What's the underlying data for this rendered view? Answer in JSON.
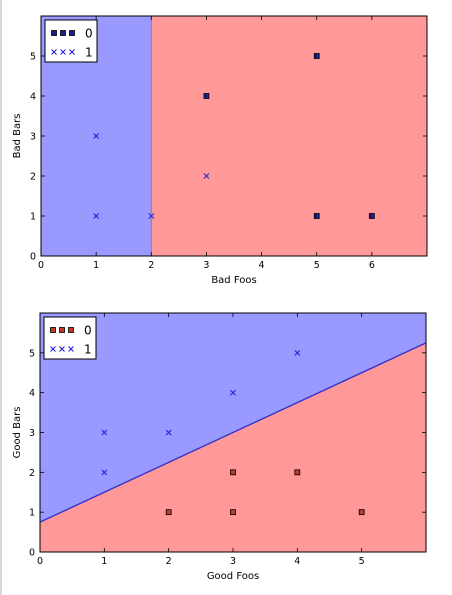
{
  "chart_data": [
    {
      "type": "scatter",
      "xlabel": "Bad Foos",
      "ylabel": "Bad Bars",
      "xlim": [
        0,
        7
      ],
      "ylim": [
        0,
        6
      ],
      "xticks": [
        "0",
        "1",
        "2",
        "3",
        "4",
        "5",
        "6"
      ],
      "yticks": [
        "0",
        "1",
        "2",
        "3",
        "4",
        "5"
      ],
      "legend_position": "top-left",
      "decision_boundary": {
        "kind": "vertical",
        "x": 2
      },
      "regions": {
        "left": "#9999ff",
        "right": "#ff9999"
      },
      "series": [
        {
          "name": "0",
          "marker": "square",
          "color": "#1c1c8c",
          "x": [
            3,
            5,
            5,
            6
          ],
          "y": [
            4,
            5,
            1,
            1
          ]
        },
        {
          "name": "1",
          "marker": "x",
          "color": "#2222dd",
          "x": [
            1,
            1,
            2,
            3
          ],
          "y": [
            3,
            1,
            1,
            2
          ]
        }
      ]
    },
    {
      "type": "scatter",
      "xlabel": "Good Foos",
      "ylabel": "Good Bars",
      "xlim": [
        0,
        6
      ],
      "ylim": [
        0,
        6
      ],
      "xticks": [
        "0",
        "1",
        "2",
        "3",
        "4",
        "5"
      ],
      "yticks": [
        "0",
        "1",
        "2",
        "3",
        "4",
        "5"
      ],
      "legend_position": "top-left",
      "decision_boundary": {
        "kind": "line",
        "intercept": 0.75,
        "slope": 0.75
      },
      "regions": {
        "above": "#9999ff",
        "below": "#ff9999"
      },
      "series": [
        {
          "name": "0",
          "marker": "square",
          "color": "#c0392b",
          "x": [
            2,
            3,
            3,
            4,
            5
          ],
          "y": [
            1,
            1,
            2,
            2,
            1
          ]
        },
        {
          "name": "1",
          "marker": "x",
          "color": "#2222dd",
          "x": [
            1,
            1,
            2,
            3,
            4
          ],
          "y": [
            2,
            3,
            3,
            4,
            5
          ]
        }
      ]
    }
  ]
}
